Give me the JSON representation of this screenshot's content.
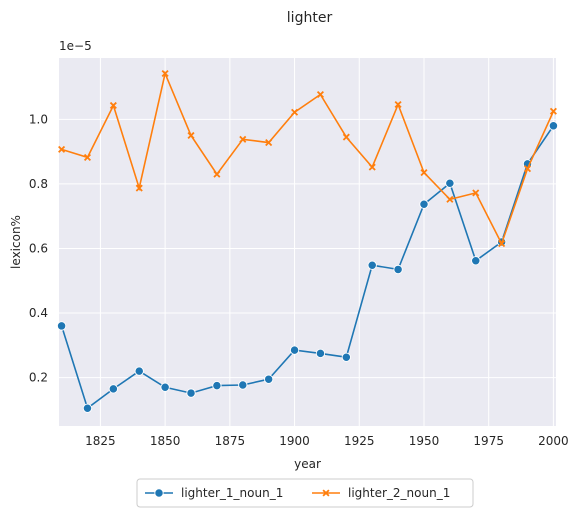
{
  "chart_data": {
    "type": "line",
    "title": "lighter",
    "xlabel": "year",
    "ylabel": "lexicon%",
    "y_scale_label": "1e−5",
    "xlim": [
      1809,
      2001
    ],
    "ylim": [
      0.05,
      1.19
    ],
    "x_ticks": [
      1825,
      1850,
      1875,
      1900,
      1925,
      1950,
      1975,
      2000
    ],
    "y_ticks": [
      0.2,
      0.4,
      0.6,
      0.8,
      1.0
    ],
    "grid": true,
    "legend_position": "bottom-center",
    "x": [
      1810,
      1820,
      1830,
      1840,
      1850,
      1860,
      1870,
      1880,
      1890,
      1900,
      1910,
      1920,
      1930,
      1940,
      1950,
      1960,
      1970,
      1980,
      1990,
      2000
    ],
    "series": [
      {
        "name": "lighter_1_noun_1",
        "color": "#1f77b4",
        "marker": "circle",
        "values": [
          0.36,
          0.105,
          0.165,
          0.22,
          0.17,
          0.152,
          0.175,
          0.177,
          0.195,
          0.285,
          0.275,
          0.263,
          0.548,
          0.535,
          0.737,
          0.802,
          0.562,
          0.62,
          0.862,
          0.98
        ]
      },
      {
        "name": "lighter_2_noun_1",
        "color": "#ff7f0e",
        "marker": "x",
        "values": [
          0.907,
          0.882,
          1.043,
          0.787,
          1.142,
          0.95,
          0.83,
          0.938,
          0.928,
          1.022,
          1.077,
          0.945,
          0.852,
          1.046,
          0.835,
          0.752,
          0.772,
          0.615,
          0.847,
          1.025
        ]
      }
    ]
  }
}
